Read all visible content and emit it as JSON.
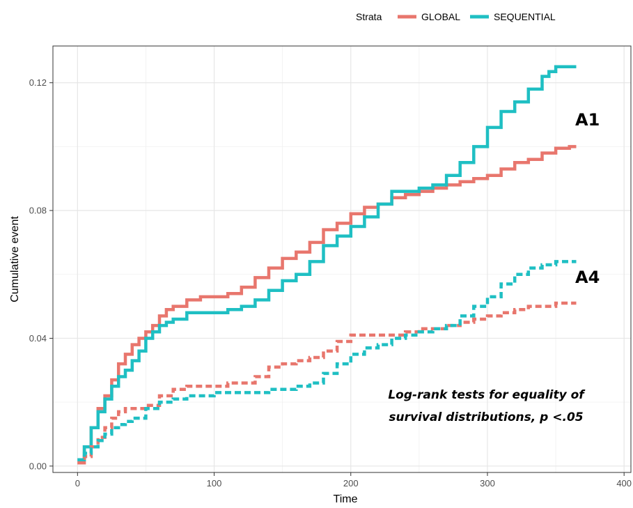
{
  "chart_data": {
    "type": "line",
    "xlabel": "Time",
    "ylabel": "Cumulative event",
    "xlim": [
      -18,
      405
    ],
    "ylim": [
      -0.002,
      0.1315
    ],
    "x_ticks": [
      0,
      100,
      200,
      300,
      400
    ],
    "y_ticks": [
      0.0,
      0.04,
      0.08,
      0.12
    ],
    "x_tick_labels": [
      "0",
      "100",
      "200",
      "300",
      "400"
    ],
    "y_tick_labels": [
      "0.00",
      "0.04",
      "0.08",
      "0.12"
    ],
    "grid": true,
    "legend": {
      "title": "Strata",
      "position": "top",
      "entries": [
        {
          "label": "GLOBAL",
          "color": "#E8766D"
        },
        {
          "label": "SEQUENTIAL",
          "color": "#1FBFC3"
        }
      ]
    },
    "panel_labels": [
      "A1",
      "A4"
    ],
    "annotation": [
      "Log-rank tests for equality of",
      "survival distributions, p <.05"
    ],
    "series": [
      {
        "strata": "GLOBAL",
        "group": "A1",
        "color": "#E8766D",
        "style": "solid",
        "x": [
          0,
          5,
          10,
          15,
          20,
          25,
          30,
          35,
          40,
          45,
          50,
          55,
          60,
          65,
          70,
          80,
          90,
          100,
          110,
          120,
          130,
          140,
          150,
          160,
          170,
          180,
          190,
          200,
          210,
          220,
          230,
          240,
          250,
          260,
          270,
          280,
          290,
          300,
          310,
          320,
          330,
          340,
          350,
          360,
          365
        ],
        "y": [
          0.001,
          0.006,
          0.012,
          0.018,
          0.022,
          0.027,
          0.032,
          0.035,
          0.038,
          0.04,
          0.042,
          0.044,
          0.047,
          0.049,
          0.05,
          0.052,
          0.053,
          0.053,
          0.054,
          0.056,
          0.059,
          0.062,
          0.065,
          0.067,
          0.07,
          0.074,
          0.076,
          0.079,
          0.081,
          0.082,
          0.084,
          0.085,
          0.086,
          0.087,
          0.088,
          0.089,
          0.09,
          0.091,
          0.093,
          0.095,
          0.096,
          0.098,
          0.0995,
          0.1,
          0.1
        ]
      },
      {
        "strata": "SEQUENTIAL",
        "group": "A1",
        "color": "#1FBFC3",
        "style": "solid",
        "x": [
          0,
          5,
          10,
          15,
          20,
          25,
          30,
          35,
          40,
          45,
          50,
          55,
          60,
          65,
          70,
          80,
          90,
          100,
          110,
          120,
          130,
          140,
          150,
          160,
          170,
          180,
          190,
          200,
          210,
          220,
          230,
          240,
          250,
          260,
          270,
          280,
          290,
          300,
          310,
          320,
          330,
          340,
          345,
          350,
          360,
          365
        ],
        "y": [
          0.002,
          0.006,
          0.012,
          0.017,
          0.021,
          0.025,
          0.028,
          0.03,
          0.033,
          0.036,
          0.04,
          0.042,
          0.044,
          0.045,
          0.046,
          0.048,
          0.048,
          0.048,
          0.049,
          0.05,
          0.052,
          0.055,
          0.058,
          0.06,
          0.064,
          0.069,
          0.072,
          0.075,
          0.078,
          0.082,
          0.086,
          0.086,
          0.087,
          0.088,
          0.091,
          0.095,
          0.1,
          0.106,
          0.111,
          0.114,
          0.118,
          0.122,
          0.1235,
          0.125,
          0.125,
          0.125
        ]
      },
      {
        "strata": "GLOBAL",
        "group": "A4",
        "color": "#E8766D",
        "style": "dashed",
        "x": [
          0,
          5,
          10,
          15,
          20,
          25,
          30,
          35,
          40,
          50,
          60,
          70,
          80,
          90,
          100,
          110,
          120,
          130,
          140,
          150,
          160,
          170,
          180,
          190,
          200,
          210,
          220,
          230,
          240,
          250,
          260,
          270,
          280,
          290,
          300,
          310,
          320,
          330,
          340,
          350,
          360,
          365
        ],
        "y": [
          0.001,
          0.003,
          0.006,
          0.009,
          0.012,
          0.015,
          0.017,
          0.018,
          0.018,
          0.019,
          0.022,
          0.024,
          0.025,
          0.025,
          0.025,
          0.026,
          0.026,
          0.028,
          0.031,
          0.032,
          0.033,
          0.034,
          0.036,
          0.039,
          0.041,
          0.041,
          0.041,
          0.041,
          0.042,
          0.043,
          0.043,
          0.044,
          0.045,
          0.046,
          0.047,
          0.048,
          0.049,
          0.05,
          0.05,
          0.051,
          0.051,
          0.051
        ]
      },
      {
        "strata": "SEQUENTIAL",
        "group": "A4",
        "color": "#1FBFC3",
        "style": "dashed",
        "x": [
          0,
          5,
          10,
          15,
          20,
          25,
          30,
          35,
          40,
          50,
          60,
          70,
          80,
          90,
          100,
          110,
          120,
          130,
          140,
          150,
          160,
          170,
          180,
          190,
          200,
          210,
          220,
          230,
          240,
          250,
          260,
          270,
          280,
          290,
          300,
          310,
          320,
          330,
          340,
          350,
          360,
          365
        ],
        "y": [
          0.002,
          0.004,
          0.006,
          0.008,
          0.01,
          0.012,
          0.013,
          0.014,
          0.015,
          0.018,
          0.02,
          0.021,
          0.022,
          0.022,
          0.023,
          0.023,
          0.023,
          0.023,
          0.024,
          0.024,
          0.025,
          0.026,
          0.029,
          0.032,
          0.035,
          0.037,
          0.038,
          0.04,
          0.041,
          0.042,
          0.043,
          0.044,
          0.047,
          0.05,
          0.053,
          0.057,
          0.06,
          0.062,
          0.063,
          0.064,
          0.064,
          0.064
        ]
      }
    ]
  }
}
